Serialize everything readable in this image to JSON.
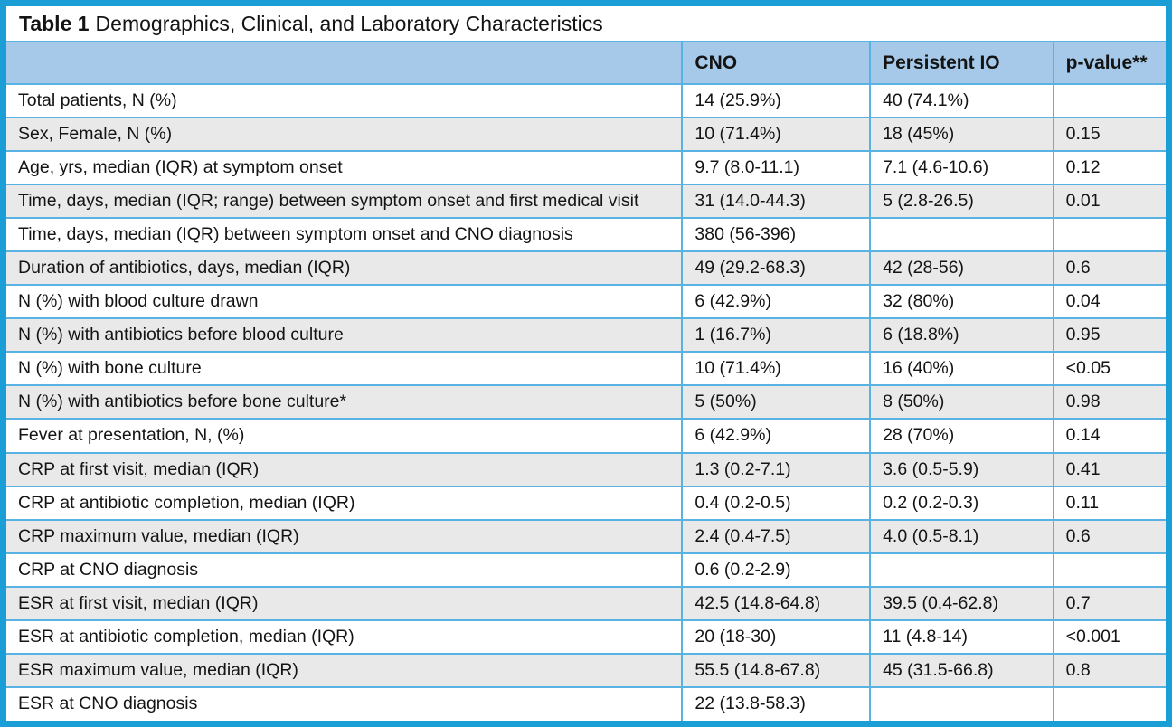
{
  "title": {
    "label": "Table 1",
    "text": "Demographics, Clinical, and Laboratory Characteristics"
  },
  "table": {
    "columns": [
      "",
      "CNO",
      "Persistent IO",
      "p-value**"
    ],
    "rows": [
      {
        "label": "Total patients, N (%)",
        "cno": "14 (25.9%)",
        "pio": "40 (74.1%)",
        "p": ""
      },
      {
        "label": "Sex, Female, N (%)",
        "cno": "10 (71.4%)",
        "pio": "18 (45%)",
        "p": "0.15"
      },
      {
        "label": "Age, yrs, median (IQR) at symptom onset",
        "cno": "9.7 (8.0-11.1)",
        "pio": "7.1 (4.6-10.6)",
        "p": "0.12"
      },
      {
        "label": "Time, days, median (IQR; range) between symptom onset and first medical visit",
        "cno": "31 (14.0-44.3)",
        "pio": "5 (2.8-26.5)",
        "p": "0.01"
      },
      {
        "label": "Time, days, median (IQR) between symptom onset and CNO diagnosis",
        "cno": "380 (56-396)",
        "pio": "",
        "p": ""
      },
      {
        "label": "Duration of antibiotics, days, median (IQR)",
        "cno": "49 (29.2-68.3)",
        "pio": "42 (28-56)",
        "p": "0.6"
      },
      {
        "label": "N (%) with blood culture drawn",
        "cno": "6 (42.9%)",
        "pio": "32 (80%)",
        "p": "0.04"
      },
      {
        "label": "N (%) with antibiotics before blood culture",
        "cno": "1 (16.7%)",
        "pio": "6 (18.8%)",
        "p": "0.95"
      },
      {
        "label": "N (%) with bone culture",
        "cno": "10 (71.4%)",
        "pio": "16 (40%)",
        "p": "<0.05"
      },
      {
        "label": "N (%) with antibiotics before bone culture*",
        "cno": "5 (50%)",
        "pio": "8 (50%)",
        "p": "0.98"
      },
      {
        "label": "Fever at presentation, N, (%)",
        "cno": "6 (42.9%)",
        "pio": "28 (70%)",
        "p": "0.14"
      },
      {
        "label": "CRP at first visit, median (IQR)",
        "cno": "1.3 (0.2-7.1)",
        "pio": "3.6 (0.5-5.9)",
        "p": "0.41"
      },
      {
        "label": "CRP at antibiotic completion, median (IQR)",
        "cno": "0.4 (0.2-0.5)",
        "pio": "0.2 (0.2-0.3)",
        "p": "0.11"
      },
      {
        "label": "CRP maximum value, median (IQR)",
        "cno": "2.4 (0.4-7.5)",
        "pio": "4.0 (0.5-8.1)",
        "p": "0.6"
      },
      {
        "label": "CRP at CNO diagnosis",
        "cno": "0.6 (0.2-2.9)",
        "pio": "",
        "p": ""
      },
      {
        "label": "ESR at first visit, median (IQR)",
        "cno": "42.5 (14.8-64.8)",
        "pio": "39.5 (0.4-62.8)",
        "p": "0.7"
      },
      {
        "label": "ESR at antibiotic completion, median (IQR)",
        "cno": "20 (18-30)",
        "pio": "11 (4.8-14)",
        "p": "<0.001"
      },
      {
        "label": "ESR maximum value, median (IQR)",
        "cno": "55.5 (14.8-67.8)",
        "pio": "45 (31.5-66.8)",
        "p": "0.8"
      },
      {
        "label": "ESR at CNO diagnosis",
        "cno": "22 (13.8-58.3)",
        "pio": "",
        "p": ""
      }
    ]
  },
  "colors": {
    "border": "#1b9ed6",
    "header_bg": "#a6c9e9",
    "grid": "#58b2e2",
    "zebra": "#e9e9e9"
  }
}
